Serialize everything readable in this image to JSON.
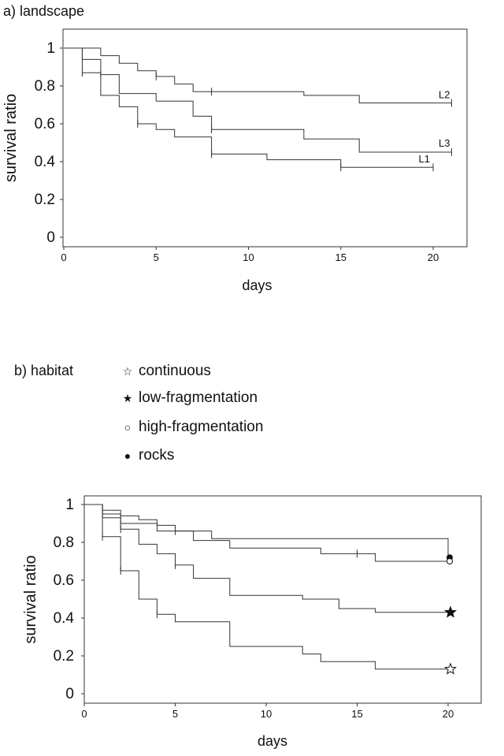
{
  "panel_a": {
    "title": "a) landscape"
  },
  "panel_b": {
    "title": "b) habitat",
    "legend": [
      {
        "label": "continuous",
        "symbol": "☆"
      },
      {
        "label": "low-fragmentation",
        "symbol": "★"
      },
      {
        "label": "high-fragmentation",
        "symbol": "○"
      },
      {
        "label": "rocks",
        "symbol": "●"
      }
    ]
  },
  "chart_data": [
    {
      "type": "line",
      "title": "a) landscape",
      "xlabel": "days",
      "ylabel": "survival ratio",
      "xlim": [
        0,
        22
      ],
      "ylim": [
        0,
        1.05
      ],
      "xticks": [
        0,
        5,
        10,
        15,
        20
      ],
      "yticks": [
        "0",
        "0.2",
        "0.4",
        "0.6",
        "0.8",
        "1"
      ],
      "series": [
        {
          "name": "L2",
          "x": [
            0,
            2,
            3,
            4,
            5,
            6,
            7,
            13,
            16,
            21
          ],
          "y": [
            1,
            0.96,
            0.92,
            0.88,
            0.85,
            0.81,
            0.77,
            0.75,
            0.71,
            0.71
          ],
          "censored": [
            5,
            8,
            21
          ]
        },
        {
          "name": "L3",
          "x": [
            0,
            1,
            2,
            3,
            5,
            7,
            8,
            13,
            16,
            21
          ],
          "y": [
            1,
            0.94,
            0.86,
            0.76,
            0.72,
            0.64,
            0.57,
            0.52,
            0.45,
            0.45
          ],
          "censored": [
            2,
            8,
            21
          ]
        },
        {
          "name": "L1",
          "x": [
            0,
            1,
            2,
            3,
            4,
            5,
            6,
            8,
            11,
            15,
            20
          ],
          "y": [
            1,
            0.87,
            0.75,
            0.69,
            0.6,
            0.57,
            0.53,
            0.44,
            0.41,
            0.37,
            0.37
          ],
          "censored": [
            1,
            4,
            8,
            15,
            20
          ]
        }
      ]
    },
    {
      "type": "line",
      "title": "b) habitat",
      "xlabel": "days",
      "ylabel": "survival ratio",
      "xlim": [
        0,
        21
      ],
      "ylim": [
        0,
        1.05
      ],
      "xticks": [
        0,
        5,
        10,
        15,
        20
      ],
      "yticks": [
        "0",
        "0.2",
        "0.4",
        "0.6",
        "0.8",
        "1"
      ],
      "series": [
        {
          "name": "rocks",
          "x": [
            0,
            1,
            2,
            3,
            4,
            5,
            7,
            20
          ],
          "y": [
            1,
            0.97,
            0.94,
            0.92,
            0.89,
            0.86,
            0.82,
            0.72
          ],
          "censored": [
            5
          ]
        },
        {
          "name": "high-fragmentation",
          "x": [
            0,
            1,
            2,
            4,
            6,
            8,
            13,
            16,
            20
          ],
          "y": [
            1,
            0.95,
            0.9,
            0.86,
            0.81,
            0.77,
            0.74,
            0.7,
            0.7
          ],
          "censored": [
            15
          ]
        },
        {
          "name": "low-fragmentation",
          "x": [
            0,
            1,
            2,
            3,
            4,
            5,
            6,
            8,
            12,
            14,
            16,
            20
          ],
          "y": [
            1,
            0.93,
            0.87,
            0.79,
            0.74,
            0.68,
            0.61,
            0.52,
            0.5,
            0.45,
            0.43,
            0.43
          ],
          "censored": [
            2,
            5
          ]
        },
        {
          "name": "continuous",
          "x": [
            0,
            1,
            2,
            3,
            4,
            5,
            8,
            12,
            13,
            16,
            20
          ],
          "y": [
            1,
            0.83,
            0.65,
            0.5,
            0.42,
            0.38,
            0.25,
            0.21,
            0.17,
            0.13,
            0.13
          ],
          "censored": [
            1,
            2,
            4
          ]
        }
      ]
    }
  ]
}
